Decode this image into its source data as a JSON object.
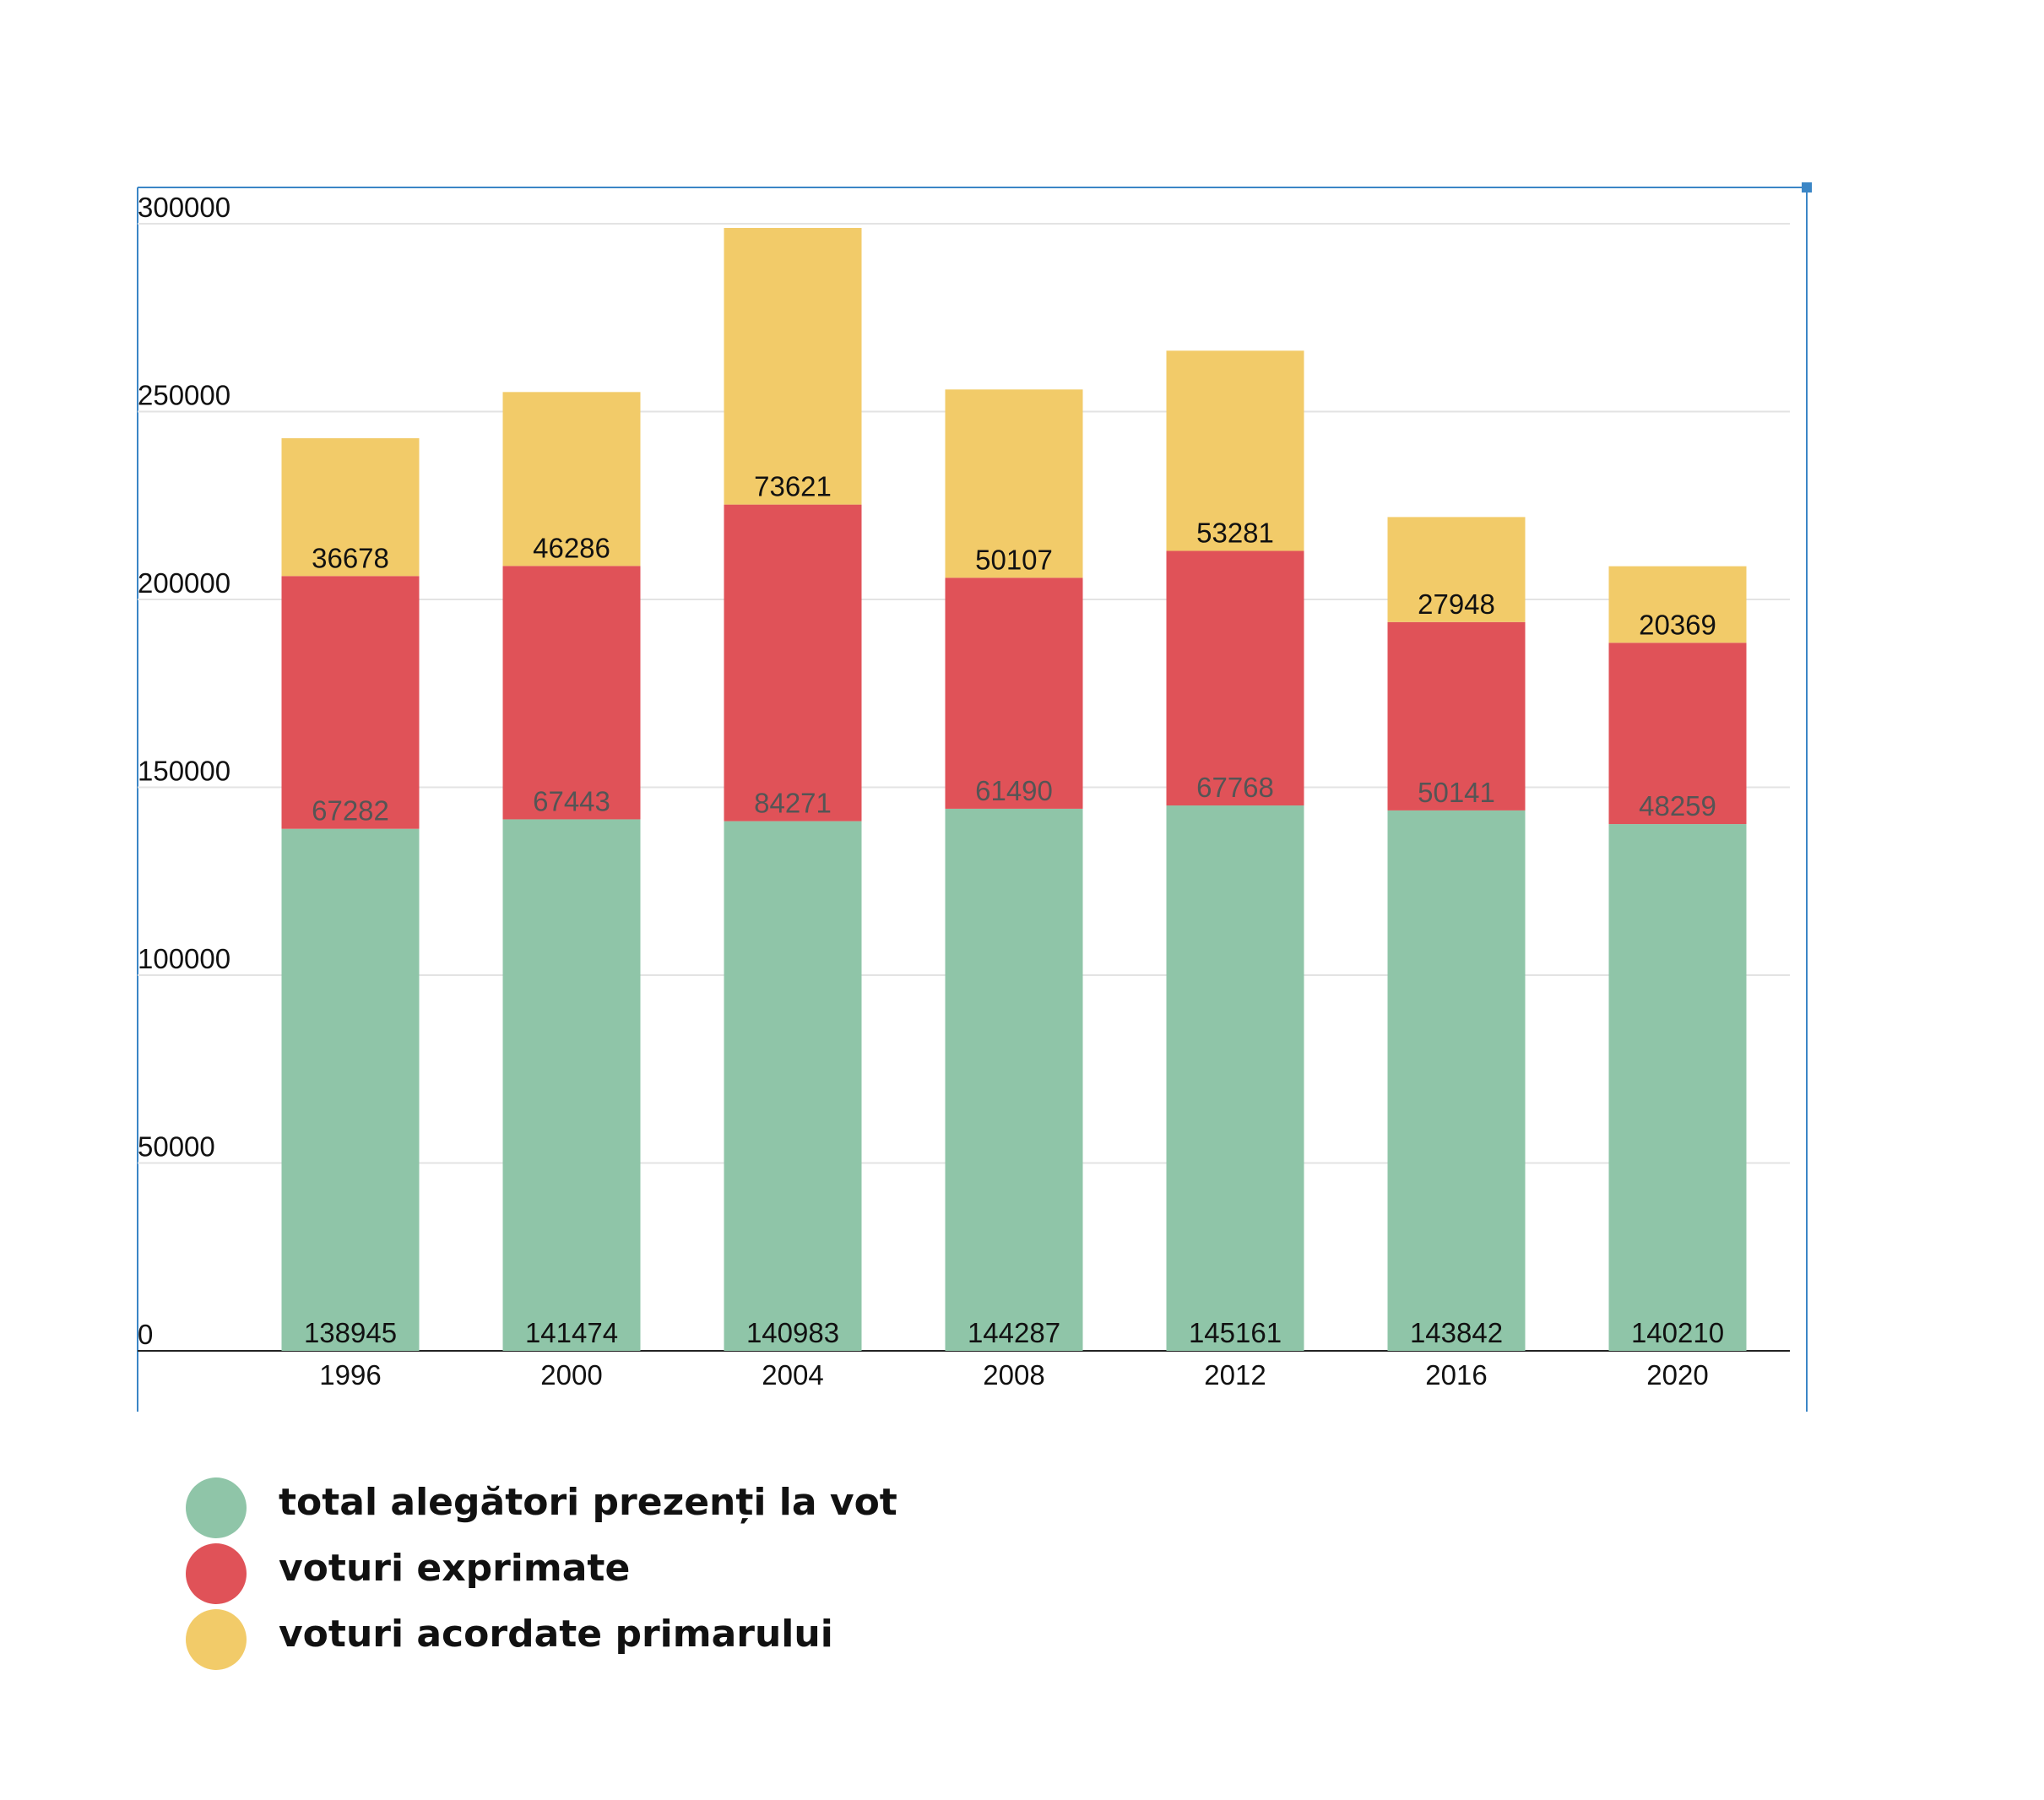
{
  "chart_data": {
    "type": "bar",
    "stacked": true,
    "categories": [
      "1996",
      "2000",
      "2004",
      "2008",
      "2012",
      "2016",
      "2020"
    ],
    "series": [
      {
        "name": "total alegători prezenți la vot",
        "color": "#8fc5a8",
        "values": [
          138945,
          141474,
          140983,
          144287,
          145161,
          143842,
          140210
        ]
      },
      {
        "name": "voturi exprimate",
        "color": "#e05258",
        "values": [
          67282,
          67443,
          84271,
          61490,
          67768,
          50141,
          48259
        ]
      },
      {
        "name": "voturi acordate primarului",
        "color": "#f2cb69",
        "values": [
          36678,
          46286,
          73621,
          50107,
          53281,
          27948,
          20369
        ]
      }
    ],
    "yticks": [
      "0",
      "50000",
      "100000",
      "150000",
      "200000",
      "250000",
      "300000"
    ],
    "ylim": [
      0,
      300000
    ],
    "grid": true,
    "legend_position": "bottom-left"
  }
}
